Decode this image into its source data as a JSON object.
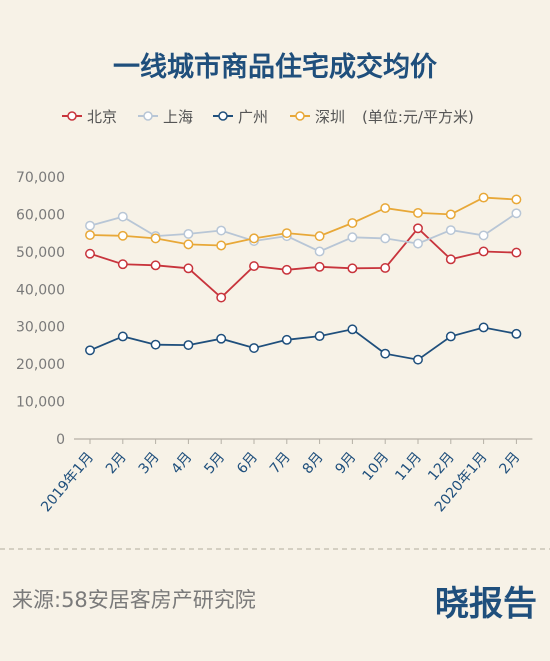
{
  "chart_data": {
    "type": "line",
    "title": "一线城市商品住宅成交均价",
    "unit_note": "(单位:元/平方米)",
    "categories": [
      "2019年1月",
      "2月",
      "3月",
      "4月",
      "5月",
      "6月",
      "7月",
      "8月",
      "9月",
      "10月",
      "11月",
      "12月",
      "2020年1月",
      "2月"
    ],
    "y_ticks": [
      "0",
      "10,000",
      "20,000",
      "30,000",
      "40,000",
      "50,000",
      "60,000",
      "70,000"
    ],
    "ylim": [
      0,
      70000
    ],
    "grid": false,
    "legend_position": "top",
    "series": [
      {
        "name": "北京",
        "color": "#c8343c",
        "values": [
          49500,
          46700,
          46400,
          45600,
          37800,
          46200,
          45200,
          46000,
          45600,
          45700,
          56300,
          48000,
          50100,
          49800
        ]
      },
      {
        "name": "上海",
        "color": "#b8c6d6",
        "values": [
          57000,
          59400,
          54200,
          54800,
          55700,
          52900,
          54200,
          50100,
          53900,
          53600,
          52200,
          55800,
          54400,
          60300
        ]
      },
      {
        "name": "广州",
        "color": "#1f4f7c",
        "values": [
          23700,
          27400,
          25200,
          25100,
          26800,
          24300,
          26500,
          27500,
          29300,
          22800,
          21200,
          27400,
          29800,
          28100
        ]
      },
      {
        "name": "深圳",
        "color": "#e8a838",
        "values": [
          54500,
          54300,
          53600,
          52000,
          51700,
          53600,
          55000,
          54200,
          57700,
          61700,
          60400,
          60000,
          64500,
          64000
        ]
      }
    ]
  },
  "footer": {
    "source": "来源:58安居客房产研究院",
    "brand": "晓报告"
  }
}
